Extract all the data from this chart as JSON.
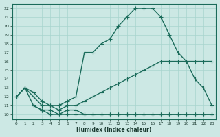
{
  "xlabel": "Humidex (Indice chaleur)",
  "background_color": "#cce8e4",
  "grid_color": "#a8d4ce",
  "line_color": "#1a6b5a",
  "xlim": [
    -0.5,
    23.5
  ],
  "ylim": [
    9.5,
    22.5
  ],
  "xticks": [
    0,
    1,
    2,
    3,
    4,
    5,
    6,
    7,
    8,
    9,
    10,
    11,
    12,
    13,
    14,
    15,
    16,
    17,
    18,
    19,
    20,
    21,
    22,
    23
  ],
  "yticks": [
    10,
    11,
    12,
    13,
    14,
    15,
    16,
    17,
    18,
    19,
    20,
    21,
    22
  ],
  "curve_peak_x": [
    0,
    1,
    2,
    3,
    4,
    5,
    6,
    7,
    8,
    9,
    10,
    11,
    12,
    13,
    14,
    15,
    16,
    17,
    18,
    19,
    20,
    21,
    22,
    23
  ],
  "curve_peak_y": [
    12,
    13,
    12,
    11,
    11,
    11,
    11.5,
    12,
    17,
    17,
    18,
    18.5,
    20,
    21,
    22,
    22,
    22,
    21,
    19,
    17,
    16,
    14,
    13,
    11
  ],
  "curve_diag_x": [
    0,
    1,
    2,
    3,
    4,
    5,
    6,
    7,
    8,
    9,
    10,
    11,
    12,
    13,
    14,
    15,
    16,
    17,
    18,
    19,
    20,
    21,
    22,
    23
  ],
  "curve_diag_y": [
    12,
    13,
    12.5,
    11.5,
    11,
    10.5,
    11,
    11,
    11.5,
    12,
    12.5,
    13,
    13.5,
    14,
    14.5,
    15,
    15.5,
    16,
    16,
    16,
    16,
    16,
    16,
    16
  ],
  "curve_flat1_x": [
    0,
    1,
    2,
    3,
    4,
    5,
    6,
    7,
    8,
    9,
    10,
    11,
    12,
    13,
    14,
    15,
    16,
    17,
    18,
    19,
    20,
    21,
    22,
    23
  ],
  "curve_flat1_y": [
    12,
    13,
    11,
    10.5,
    10,
    10,
    10,
    10,
    10,
    10,
    10,
    10,
    10,
    10,
    10,
    10,
    10,
    10,
    10,
    10,
    10,
    10,
    10,
    10
  ],
  "curve_flat2_x": [
    2,
    3,
    4,
    5,
    6,
    7,
    8,
    9,
    10,
    11,
    12,
    13,
    14,
    15,
    16,
    17,
    18,
    19,
    20,
    21,
    22,
    23
  ],
  "curve_flat2_y": [
    11,
    10.5,
    10.5,
    10,
    10.5,
    10.5,
    10,
    10,
    10,
    10,
    10,
    10,
    10,
    10,
    10,
    10,
    10,
    10,
    10,
    10,
    10,
    10
  ],
  "marker_size": 2.5,
  "line_width": 1.0
}
